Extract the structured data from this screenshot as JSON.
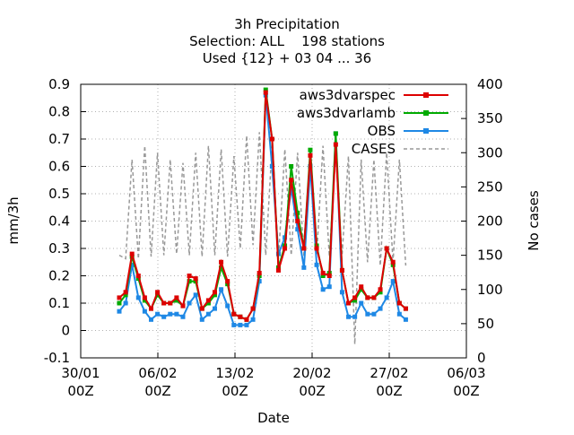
{
  "chart_data": {
    "type": "line",
    "title": [
      "3h Precipitation",
      "Selection: ALL    198 stations",
      "Used {12} + 03 04 ... 36"
    ],
    "xlabel": "Date",
    "ylabel": "mm/3h",
    "y2label": "No cases",
    "ylim": [
      -0.1,
      0.9
    ],
    "y2lim": [
      0,
      400
    ],
    "yticks": [
      "-0.1",
      "0",
      "0.1",
      "0.2",
      "0.3",
      "0.4",
      "0.5",
      "0.6",
      "0.7",
      "0.8",
      "0.9"
    ],
    "y2ticks": [
      "0",
      "50",
      "100",
      "150",
      "200",
      "250",
      "300",
      "350",
      "400"
    ],
    "xticks": [
      {
        "line1": "30/01",
        "line2": "00Z"
      },
      {
        "line1": "06/02",
        "line2": "00Z"
      },
      {
        "line1": "13/02",
        "line2": "00Z"
      },
      {
        "line1": "20/02",
        "line2": "00Z"
      },
      {
        "line1": "27/02",
        "line2": "00Z"
      },
      {
        "line1": "06/03",
        "line2": "00Z"
      }
    ],
    "grid": true,
    "legend_position": "top-right",
    "series": [
      {
        "name": "aws3dvarspec",
        "color": "#dd0000",
        "axis": "left",
        "style": "line-points",
        "approx_values": [
          0.12,
          0.14,
          0.28,
          0.2,
          0.12,
          0.08,
          0.14,
          0.1,
          0.1,
          0.12,
          0.09,
          0.2,
          0.19,
          0.08,
          0.11,
          0.14,
          0.25,
          0.18,
          0.06,
          0.05,
          0.04,
          0.08,
          0.21,
          0.87,
          0.7,
          0.22,
          0.3,
          0.55,
          0.4,
          0.3,
          0.64,
          0.3,
          0.21,
          0.2,
          0.68,
          0.22,
          0.1,
          0.12,
          0.16,
          0.12,
          0.12,
          0.15,
          0.3,
          0.25,
          0.1,
          0.08
        ]
      },
      {
        "name": "aws3dvarlamb",
        "color": "#00aa00",
        "axis": "left",
        "style": "line-points",
        "approx_values": [
          0.1,
          0.13,
          0.27,
          0.19,
          0.11,
          0.08,
          0.13,
          0.1,
          0.1,
          0.11,
          0.09,
          0.18,
          0.18,
          0.08,
          0.1,
          0.13,
          0.23,
          0.17,
          0.06,
          0.05,
          0.04,
          0.08,
          0.2,
          0.88,
          0.7,
          0.23,
          0.31,
          0.6,
          0.43,
          0.3,
          0.66,
          0.31,
          0.2,
          0.21,
          0.72,
          0.22,
          0.1,
          0.11,
          0.15,
          0.12,
          0.12,
          0.14,
          0.3,
          0.24,
          0.1,
          0.08
        ]
      },
      {
        "name": "OBS",
        "color": "#1e88e5",
        "axis": "left",
        "style": "line-points",
        "approx_values": [
          0.07,
          0.1,
          0.24,
          0.12,
          0.07,
          0.04,
          0.06,
          0.05,
          0.06,
          0.06,
          0.05,
          0.1,
          0.13,
          0.04,
          0.06,
          0.08,
          0.15,
          0.09,
          0.02,
          0.02,
          0.02,
          0.04,
          0.18,
          0.86,
          0.6,
          0.28,
          0.34,
          0.52,
          0.37,
          0.23,
          0.6,
          0.24,
          0.15,
          0.16,
          0.72,
          0.14,
          0.05,
          0.05,
          0.1,
          0.06,
          0.06,
          0.08,
          0.12,
          0.18,
          0.06,
          0.04
        ]
      },
      {
        "name": "CASES",
        "color": "#999999",
        "axis": "right",
        "style": "dashed",
        "approx_values": [
          150,
          145,
          290,
          145,
          310,
          148,
          300,
          150,
          290,
          152,
          285,
          150,
          300,
          148,
          310,
          150,
          305,
          148,
          295,
          160,
          325,
          165,
          330,
          150,
          310,
          145,
          305,
          150,
          300,
          148,
          305,
          150,
          310,
          148,
          300,
          150,
          295,
          20,
          290,
          140,
          290,
          135,
          300,
          140,
          290,
          135
        ]
      }
    ]
  }
}
